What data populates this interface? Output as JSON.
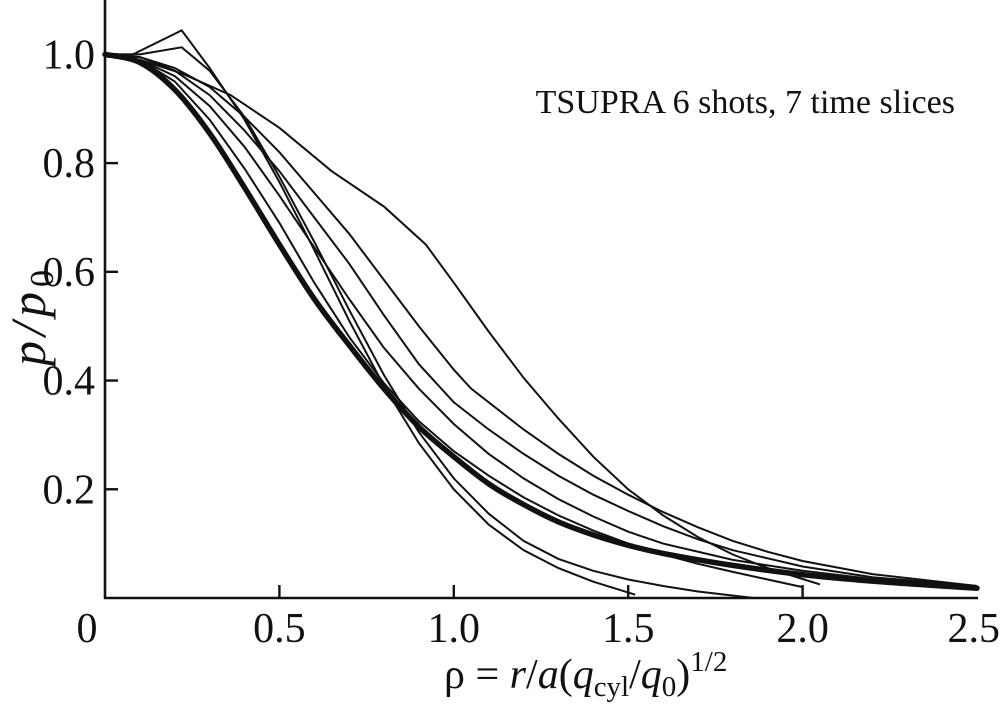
{
  "colors": {
    "background": "#ffffff",
    "ink": "#111111"
  },
  "chart_data": {
    "type": "line",
    "annotation": "TSUPRA 6 shots, 7 time slices",
    "xlabel": [
      "ρ = ",
      "r",
      "/",
      "a",
      "(",
      "q",
      "cyl",
      "/",
      "q",
      "0",
      ")",
      "1/2"
    ],
    "ylabel": [
      "p",
      "/",
      "p",
      "0"
    ],
    "xlim": [
      0,
      2.5
    ],
    "ylim": [
      0,
      1.1
    ],
    "grid": false,
    "x_ticks": [
      {
        "value": 0,
        "label": "0",
        "mark": false
      },
      {
        "value": 0.5,
        "label": "0.5",
        "mark": true
      },
      {
        "value": 1.0,
        "label": "1.0",
        "mark": true
      },
      {
        "value": 1.5,
        "label": "1.5",
        "mark": true
      },
      {
        "value": 2.0,
        "label": "2.0",
        "mark": true
      },
      {
        "value": 2.5,
        "label": "2.5",
        "mark": false
      }
    ],
    "y_ticks": [
      {
        "value": 0.2,
        "label": "0.2",
        "mark": true
      },
      {
        "value": 0.4,
        "label": "0.4",
        "mark": true
      },
      {
        "value": 0.6,
        "label": "0.6",
        "mark": true
      },
      {
        "value": 0.8,
        "label": "0.8",
        "mark": true
      },
      {
        "value": 1.0,
        "label": "1.0",
        "mark": true
      }
    ],
    "series": [
      {
        "points": [
          [
            0,
            1.0
          ],
          [
            0.08,
            1.0
          ],
          [
            0.22,
            1.044
          ],
          [
            0.3,
            0.975
          ],
          [
            0.4,
            0.88
          ],
          [
            0.5,
            0.765
          ],
          [
            0.6,
            0.64
          ],
          [
            0.7,
            0.51
          ],
          [
            0.8,
            0.39
          ],
          [
            0.9,
            0.285
          ],
          [
            1.0,
            0.2
          ],
          [
            1.1,
            0.135
          ],
          [
            1.2,
            0.088
          ],
          [
            1.3,
            0.055
          ],
          [
            1.4,
            0.03
          ],
          [
            1.52,
            0.006
          ]
        ]
      },
      {
        "points": [
          [
            0,
            1.0
          ],
          [
            0.1,
            1.0
          ],
          [
            0.22,
            1.013
          ],
          [
            0.3,
            0.97
          ],
          [
            0.4,
            0.885
          ],
          [
            0.5,
            0.775
          ],
          [
            0.6,
            0.655
          ],
          [
            0.7,
            0.53
          ],
          [
            0.8,
            0.41
          ],
          [
            0.9,
            0.305
          ],
          [
            1.0,
            0.22
          ],
          [
            1.1,
            0.155
          ],
          [
            1.2,
            0.105
          ],
          [
            1.3,
            0.072
          ],
          [
            1.4,
            0.05
          ],
          [
            1.5,
            0.034
          ],
          [
            1.6,
            0.022
          ],
          [
            1.7,
            0.012
          ],
          [
            1.86,
            0.0
          ]
        ]
      },
      {
        "points": [
          [
            0,
            1.0
          ],
          [
            0.1,
            0.99
          ],
          [
            0.22,
            0.965
          ],
          [
            0.36,
            0.925
          ],
          [
            0.5,
            0.865
          ],
          [
            0.65,
            0.785
          ],
          [
            0.8,
            0.72
          ],
          [
            0.92,
            0.65
          ],
          [
            1.0,
            0.58
          ],
          [
            1.1,
            0.49
          ],
          [
            1.2,
            0.405
          ],
          [
            1.3,
            0.33
          ],
          [
            1.4,
            0.26
          ],
          [
            1.5,
            0.2
          ],
          [
            1.6,
            0.152
          ],
          [
            1.7,
            0.112
          ],
          [
            1.8,
            0.08
          ],
          [
            1.9,
            0.055
          ],
          [
            2.0,
            0.035
          ],
          [
            2.05,
            0.025
          ]
        ]
      },
      {
        "points": [
          [
            0,
            1.0
          ],
          [
            0.1,
            0.995
          ],
          [
            0.2,
            0.97
          ],
          [
            0.3,
            0.925
          ],
          [
            0.4,
            0.86
          ],
          [
            0.5,
            0.785
          ],
          [
            0.6,
            0.7
          ],
          [
            0.7,
            0.615
          ],
          [
            0.8,
            0.52
          ],
          [
            0.9,
            0.43
          ],
          [
            1.0,
            0.36
          ],
          [
            1.1,
            0.31
          ],
          [
            1.2,
            0.265
          ],
          [
            1.3,
            0.225
          ],
          [
            1.4,
            0.19
          ],
          [
            1.5,
            0.16
          ],
          [
            1.6,
            0.132
          ],
          [
            1.7,
            0.108
          ],
          [
            1.8,
            0.088
          ],
          [
            2.0,
            0.058
          ],
          [
            2.2,
            0.038
          ],
          [
            2.5,
            0.022
          ]
        ]
      },
      {
        "points": [
          [
            0,
            1.0
          ],
          [
            0.1,
            0.995
          ],
          [
            0.2,
            0.975
          ],
          [
            0.3,
            0.94
          ],
          [
            0.4,
            0.885
          ],
          [
            0.5,
            0.82
          ],
          [
            0.6,
            0.745
          ],
          [
            0.7,
            0.67
          ],
          [
            0.8,
            0.585
          ],
          [
            0.9,
            0.5
          ],
          [
            1.0,
            0.42
          ],
          [
            1.05,
            0.385
          ],
          [
            1.2,
            0.31
          ],
          [
            1.3,
            0.265
          ],
          [
            1.4,
            0.225
          ],
          [
            1.5,
            0.19
          ],
          [
            1.6,
            0.158
          ],
          [
            1.7,
            0.13
          ],
          [
            1.8,
            0.105
          ],
          [
            1.9,
            0.085
          ],
          [
            2.0,
            0.068
          ],
          [
            2.2,
            0.044
          ],
          [
            2.5,
            0.022
          ]
        ]
      },
      {
        "points": [
          [
            0,
            1.0
          ],
          [
            0.1,
            0.99
          ],
          [
            0.2,
            0.95
          ],
          [
            0.3,
            0.88
          ],
          [
            0.4,
            0.79
          ],
          [
            0.5,
            0.69
          ],
          [
            0.6,
            0.58
          ],
          [
            0.7,
            0.48
          ],
          [
            0.8,
            0.395
          ],
          [
            0.9,
            0.325
          ],
          [
            1.0,
            0.27
          ],
          [
            1.1,
            0.225
          ],
          [
            1.2,
            0.185
          ],
          [
            1.3,
            0.152
          ],
          [
            1.4,
            0.124
          ],
          [
            1.5,
            0.1
          ],
          [
            1.6,
            0.08
          ],
          [
            1.7,
            0.063
          ],
          [
            1.8,
            0.048
          ],
          [
            1.9,
            0.034
          ],
          [
            2.0,
            0.02
          ]
        ]
      },
      {
        "points": [
          [
            0,
            1.0
          ],
          [
            0.1,
            0.99
          ],
          [
            0.2,
            0.96
          ],
          [
            0.3,
            0.905
          ],
          [
            0.4,
            0.83
          ],
          [
            0.5,
            0.74
          ],
          [
            0.6,
            0.645
          ],
          [
            0.7,
            0.55
          ],
          [
            0.8,
            0.46
          ],
          [
            0.9,
            0.385
          ],
          [
            1.0,
            0.32
          ],
          [
            1.1,
            0.265
          ],
          [
            1.2,
            0.22
          ],
          [
            1.3,
            0.182
          ],
          [
            1.4,
            0.15
          ],
          [
            1.5,
            0.122
          ],
          [
            1.6,
            0.1
          ],
          [
            1.8,
            0.07
          ],
          [
            2.0,
            0.05
          ],
          [
            2.2,
            0.035
          ],
          [
            2.5,
            0.02
          ]
        ]
      }
    ],
    "bold_series": {
      "points": [
        [
          0,
          1.0
        ],
        [
          0.1,
          0.985
        ],
        [
          0.2,
          0.935
        ],
        [
          0.3,
          0.855
        ],
        [
          0.4,
          0.755
        ],
        [
          0.5,
          0.65
        ],
        [
          0.6,
          0.55
        ],
        [
          0.7,
          0.465
        ],
        [
          0.8,
          0.385
        ],
        [
          0.9,
          0.315
        ],
        [
          1.0,
          0.26
        ],
        [
          1.1,
          0.21
        ],
        [
          1.2,
          0.172
        ],
        [
          1.3,
          0.14
        ],
        [
          1.4,
          0.116
        ],
        [
          1.5,
          0.097
        ],
        [
          1.6,
          0.082
        ],
        [
          1.8,
          0.06
        ],
        [
          2.0,
          0.043
        ],
        [
          2.2,
          0.031
        ],
        [
          2.4,
          0.022
        ],
        [
          2.5,
          0.018
        ]
      ]
    }
  }
}
